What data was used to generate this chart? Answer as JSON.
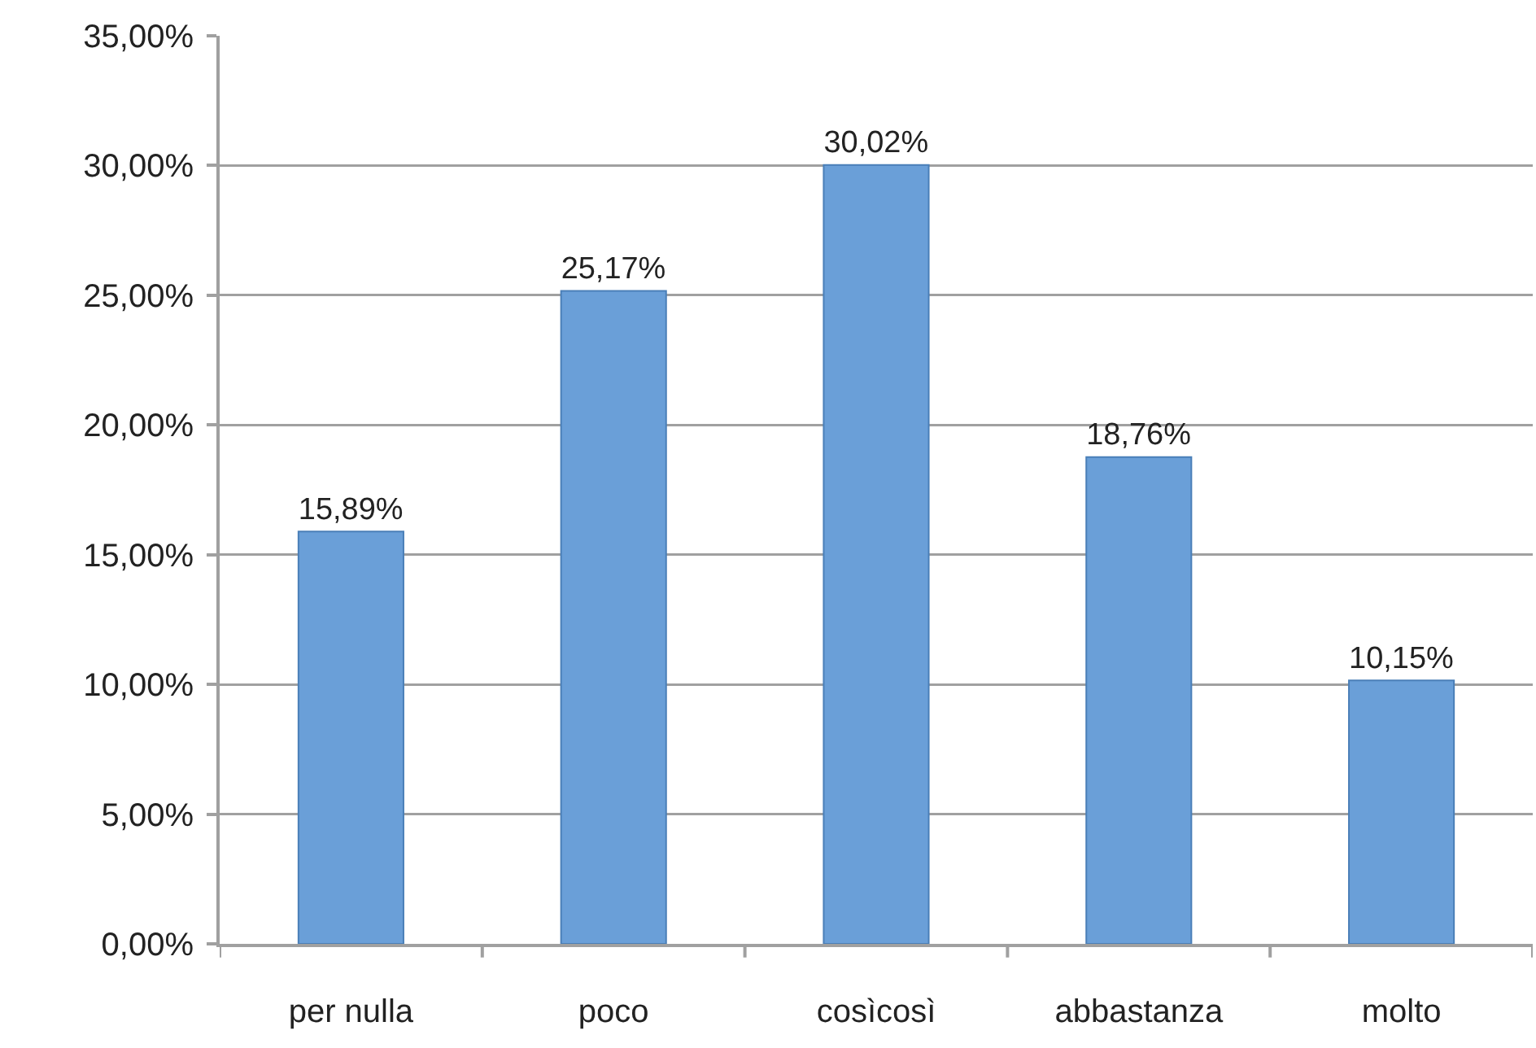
{
  "chart_data": {
    "type": "bar",
    "categories": [
      "per nulla",
      "poco",
      "cosìcosì",
      "abbastanza",
      "molto"
    ],
    "values": [
      15.89,
      25.17,
      30.02,
      18.76,
      10.15
    ],
    "value_labels": [
      "15,89%",
      "25,17%",
      "30,02%",
      "18,76%",
      "10,15%"
    ],
    "color": "#6a9fd8",
    "ylim": [
      0,
      35
    ],
    "yticks": [
      {
        "value": 0,
        "label": "0,00%"
      },
      {
        "value": 5,
        "label": "5,00%"
      },
      {
        "value": 10,
        "label": "10,00%"
      },
      {
        "value": 15,
        "label": "15,00%"
      },
      {
        "value": 20,
        "label": "20,00%"
      },
      {
        "value": 25,
        "label": "25,00%"
      },
      {
        "value": 30,
        "label": "30,00%"
      },
      {
        "value": 35,
        "label": "35,00%"
      }
    ],
    "grid": "y"
  }
}
